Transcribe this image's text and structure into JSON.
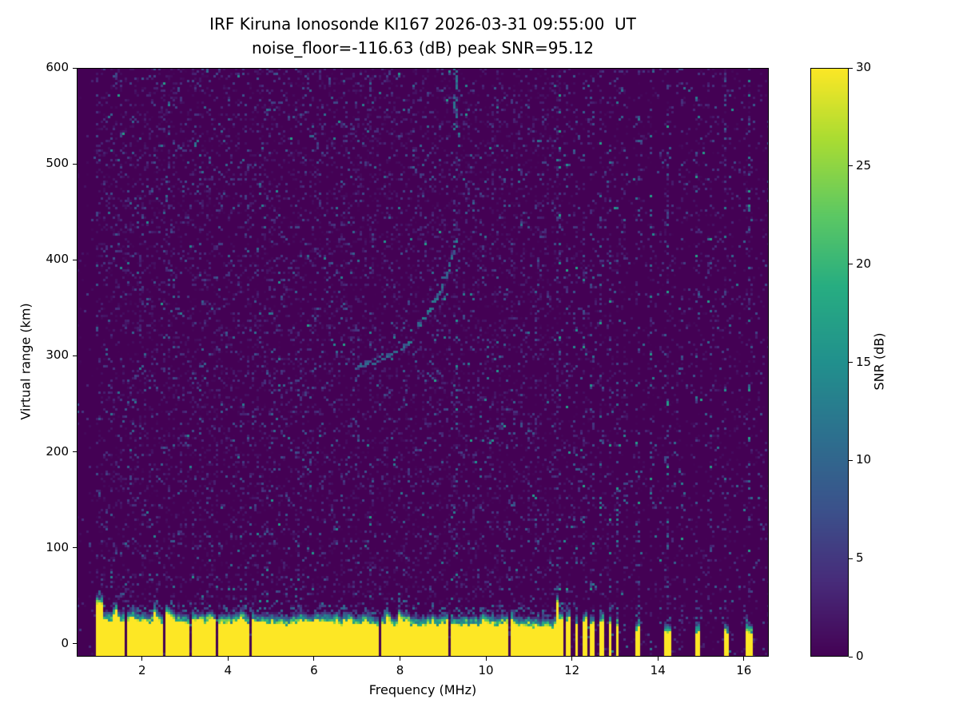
{
  "figure": {
    "title_line1": "IRF Kiruna Ionosonde KI167 2026-03-31 09:55:00  UT",
    "title_line2": "noise_floor=-116.63 (dB) peak SNR=95.12"
  },
  "chart_data": {
    "type": "heatmap",
    "title": "IRF Kiruna Ionosonde KI167 2026-03-31 09:55:00  UT",
    "subtitle": "noise_floor=-116.63 (dB) peak SNR=95.12",
    "xlabel": "Frequency (MHz)",
    "ylabel": "Virtual range (km)",
    "xlim": [
      0.48,
      16.58
    ],
    "ylim": [
      -13.5,
      600
    ],
    "xticks": [
      2,
      4,
      6,
      8,
      10,
      12,
      14,
      16
    ],
    "yticks": [
      0,
      100,
      200,
      300,
      400,
      500,
      600
    ],
    "noise_floor_db": -116.63,
    "peak_snr_db": 95.12,
    "grid": false,
    "colorbar": {
      "label": "SNR (dB)",
      "min": 0,
      "max": 30,
      "ticks": [
        0,
        5,
        10,
        15,
        20,
        25,
        30
      ],
      "colormap": "viridis"
    },
    "colormap_stops": [
      [
        0.0,
        [
          68,
          1,
          84
        ]
      ],
      [
        0.13,
        [
          71,
          44,
          122
        ]
      ],
      [
        0.25,
        [
          59,
          81,
          139
        ]
      ],
      [
        0.38,
        [
          44,
          113,
          142
        ]
      ],
      [
        0.5,
        [
          33,
          144,
          141
        ]
      ],
      [
        0.63,
        [
          39,
          173,
          129
        ]
      ],
      [
        0.75,
        [
          92,
          200,
          99
        ]
      ],
      [
        0.88,
        [
          170,
          220,
          50
        ]
      ],
      [
        1.0,
        [
          253,
          231,
          37
        ]
      ]
    ],
    "features": {
      "background_snr": 0,
      "speckle": {
        "probability": 0.22,
        "mean_snr": 2.6,
        "left_margin_probability": 0.04,
        "right_region_probability": 0.1
      },
      "ground_clutter": {
        "continuous_band": {
          "f_start": 0.95,
          "f_end": 11.66,
          "top_km_base": 26,
          "top_km_jitter": 9,
          "snr": 30
        },
        "bars": [
          [
            0.95,
            1.08,
            46
          ],
          [
            11.6,
            11.67,
            50
          ],
          [
            11.68,
            11.78,
            30
          ],
          [
            11.86,
            11.96,
            32
          ],
          [
            12.04,
            12.14,
            28
          ],
          [
            12.22,
            12.32,
            30
          ],
          [
            12.42,
            12.52,
            26
          ],
          [
            12.62,
            12.72,
            28
          ],
          [
            12.82,
            12.92,
            26
          ],
          [
            13.0,
            13.07,
            24
          ],
          [
            13.45,
            13.56,
            22
          ],
          [
            14.15,
            14.28,
            18
          ],
          [
            14.85,
            14.97,
            18
          ],
          [
            15.5,
            15.62,
            17
          ],
          [
            16.05,
            16.18,
            18
          ]
        ],
        "notches": [
          1.62,
          2.53,
          3.12,
          3.72,
          4.5,
          6.33,
          7.54,
          9.13,
          10.55
        ]
      },
      "interference_stripes": [
        {
          "f": 7.3,
          "s": 0.4
        },
        {
          "f": 9.3,
          "s": 0.8
        },
        {
          "f": 11.7,
          "s": 1.6
        },
        {
          "f": 11.88,
          "s": 1.4
        },
        {
          "f": 12.06,
          "s": 1.5
        },
        {
          "f": 12.26,
          "s": 1.3
        },
        {
          "f": 12.46,
          "s": 1.5
        },
        {
          "f": 12.66,
          "s": 1.3
        },
        {
          "f": 12.86,
          "s": 1.4
        },
        {
          "f": 13.04,
          "s": 1.2
        },
        {
          "f": 13.22,
          "s": 1.0
        },
        {
          "f": 13.52,
          "s": 1.5
        },
        {
          "f": 13.82,
          "s": 1.2
        },
        {
          "f": 14.2,
          "s": 1.6
        },
        {
          "f": 14.52,
          "s": 1.0
        },
        {
          "f": 14.9,
          "s": 1.4
        },
        {
          "f": 15.2,
          "s": 0.9
        },
        {
          "f": 15.55,
          "s": 1.3
        },
        {
          "f": 16.1,
          "s": 1.5
        }
      ],
      "top_streak": {
        "f": 9.3,
        "r_start": 535,
        "r_end": 600,
        "snr": 11
      },
      "echo_traces": [
        {
          "points": [
            [
              7.0,
              288
            ],
            [
              7.5,
              296
            ],
            [
              8.0,
              306
            ],
            [
              8.3,
              316
            ]
          ],
          "snr": 10
        },
        {
          "points": [
            [
              8.25,
              324
            ],
            [
              8.6,
              340
            ],
            [
              8.9,
              362
            ],
            [
              9.1,
              386
            ],
            [
              9.3,
              418
            ]
          ],
          "snr": 11
        }
      ]
    }
  }
}
